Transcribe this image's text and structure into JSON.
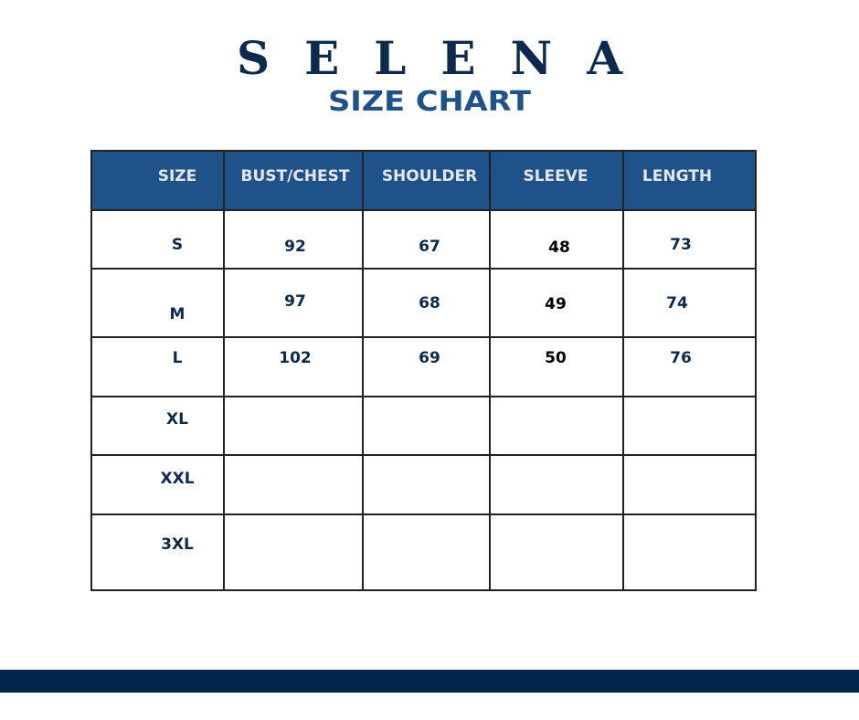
{
  "brand": "SELENA",
  "title": "SIZE CHART",
  "table": {
    "headers": [
      "SIZE",
      "BUST/CHEST",
      "SHOULDER",
      "SLEEVE",
      "LENGTH"
    ],
    "rows": [
      [
        "S",
        "92",
        "67",
        "48",
        "73"
      ],
      [
        "M",
        "97",
        "68",
        "49",
        "74"
      ],
      [
        "L",
        "102",
        "69",
        "50",
        "76"
      ],
      [
        "XL",
        "",
        "",
        "",
        ""
      ],
      [
        "XXL",
        "",
        "",
        "",
        ""
      ],
      [
        "3XL",
        "",
        "",
        "",
        ""
      ]
    ]
  },
  "colors": {
    "header_bg": "#1f5289",
    "brand": "#0b2a4e",
    "footer": "#00244a"
  }
}
